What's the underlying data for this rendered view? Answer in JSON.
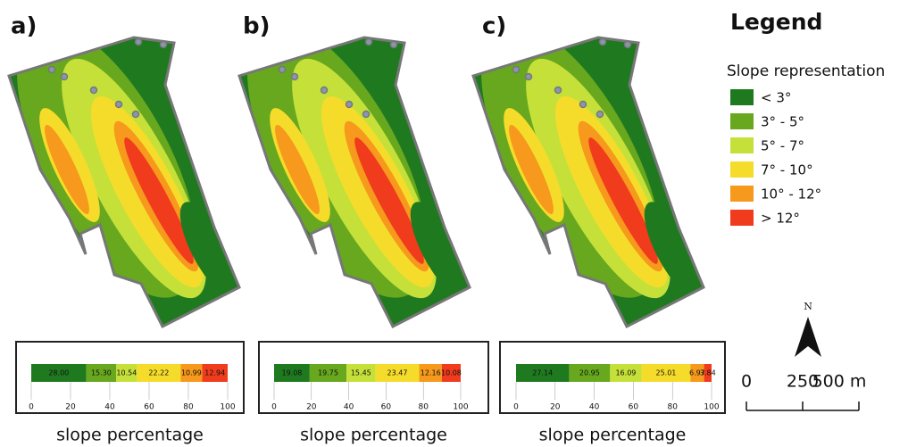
{
  "panels": [
    {
      "label": "a)",
      "values": [
        28.0,
        15.3,
        10.54,
        22.22,
        10.99,
        12.94
      ],
      "value_labels": [
        "28.00",
        "15.30",
        "10.54",
        "22.22",
        "10.99",
        "12.94"
      ],
      "xlim": [
        0,
        100
      ],
      "xticks": [
        0,
        20,
        40,
        60,
        80,
        100
      ],
      "xlabel": "slope percentage"
    },
    {
      "label": "b)",
      "values": [
        19.08,
        19.75,
        15.45,
        23.47,
        12.16,
        10.08
      ],
      "value_labels": [
        "19.08",
        "19.75",
        "15.45",
        "23.47",
        "12.16",
        "10.08"
      ],
      "xlim": [
        0,
        100
      ],
      "xticks": [
        0,
        20,
        40,
        60,
        80,
        100
      ],
      "xlabel": "slope percentage"
    },
    {
      "label": "c)",
      "values": [
        27.14,
        20.95,
        16.09,
        25.01,
        6.97,
        3.84
      ],
      "value_labels": [
        "27.14",
        "20.95",
        "16.09",
        "25.01",
        "6.97",
        "3.84"
      ],
      "xlim": [
        0,
        100
      ],
      "xticks": [
        0,
        20,
        40,
        60,
        80,
        100
      ],
      "xlabel": "slope percentage"
    }
  ],
  "legend": {
    "title": "Legend",
    "subtitle": "Slope representation",
    "classes": [
      {
        "label": "< 3°",
        "color": "#1f7a1f"
      },
      {
        "label": "3° - 5°",
        "color": "#67a81e"
      },
      {
        "label": "5° - 7°",
        "color": "#c6e03a"
      },
      {
        "label": "7° - 10°",
        "color": "#f6dc2a"
      },
      {
        "label": "10° - 12°",
        "color": "#f6991c"
      },
      {
        "label": "> 12°",
        "color": "#f03b1d"
      }
    ]
  },
  "north": "N",
  "scale": {
    "xlim": [
      0,
      500
    ],
    "ticks": [
      0,
      250,
      {
        "value": 500,
        "label": "500 m"
      }
    ]
  }
}
